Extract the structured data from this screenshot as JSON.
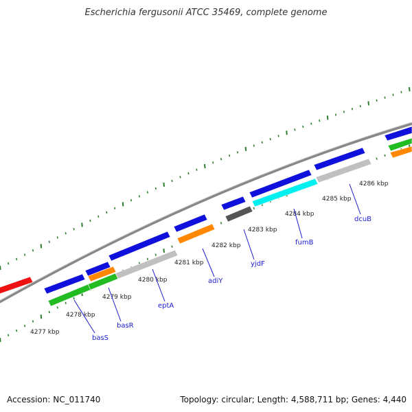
{
  "title": "Escherichia fergusonii ATCC 35469, complete genome",
  "footer": {
    "accession": "Accession: NC_011740",
    "summary": "Topology: circular; Length: 4,588,711 bp; Genes: 4,440"
  },
  "colors": {
    "blue": "#1010dd",
    "green": "#22bb22",
    "orange": "#ff8800",
    "gray": "#c0c0c0",
    "darkgray": "#555555",
    "cyan": "#00f0f0",
    "red": "#ee1111",
    "backbone": "#888888",
    "tick": "#2e7d2e",
    "gene_label": "#1a1acc"
  },
  "kbp_labels": [
    "4277 kbp",
    "4278 kbp",
    "4279 kbp",
    "4280 kbp",
    "4281 kbp",
    "4282 kbp",
    "4283 kbp",
    "4284 kbp",
    "4285 kbp",
    "4286 kbp"
  ],
  "gene_labels": [
    "basS",
    "basR",
    "eptA",
    "adiY",
    "yjdF",
    "fumB",
    "dcuB"
  ],
  "features": [
    {
      "color": "blue"
    },
    {
      "color": "blue"
    },
    {
      "color": "blue"
    },
    {
      "color": "blue"
    },
    {
      "color": "blue"
    },
    {
      "color": "blue"
    },
    {
      "color": "blue"
    },
    {
      "color": "blue"
    },
    {
      "color": "green"
    },
    {
      "color": "green"
    },
    {
      "color": "orange"
    },
    {
      "color": "orange"
    },
    {
      "color": "gray"
    },
    {
      "color": "gray"
    },
    {
      "color": "darkgray"
    },
    {
      "color": "cyan"
    },
    {
      "color": "red"
    },
    {
      "color": "green"
    },
    {
      "color": "orange"
    }
  ]
}
